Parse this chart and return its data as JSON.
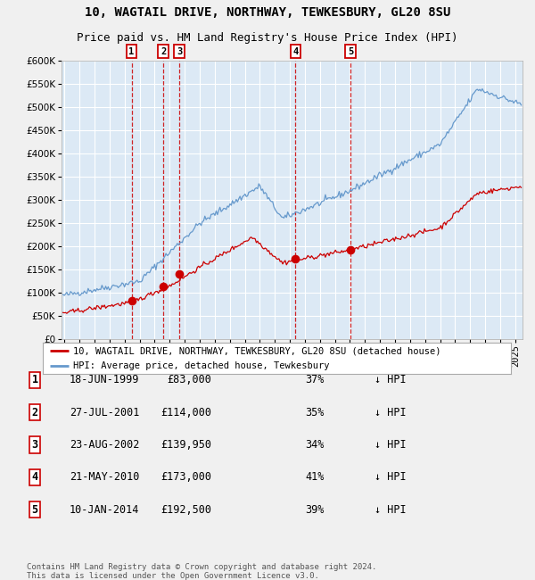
{
  "title": "10, WAGTAIL DRIVE, NORTHWAY, TEWKESBURY, GL20 8SU",
  "subtitle": "Price paid vs. HM Land Registry's House Price Index (HPI)",
  "background_color": "#f0f0f0",
  "plot_bg_color": "#dce9f5",
  "grid_color": "#ffffff",
  "ylim": [
    0,
    600000
  ],
  "yticks": [
    0,
    50000,
    100000,
    150000,
    200000,
    250000,
    300000,
    350000,
    400000,
    450000,
    500000,
    550000,
    600000
  ],
  "xlim_start": 1994.8,
  "xlim_end": 2025.5,
  "sale_dates": [
    1999.46,
    2001.57,
    2002.64,
    2010.38,
    2014.03
  ],
  "sale_prices": [
    83000,
    114000,
    139950,
    173000,
    192500
  ],
  "sale_labels": [
    "1",
    "2",
    "3",
    "4",
    "5"
  ],
  "red_line_color": "#cc0000",
  "blue_line_color": "#6699cc",
  "marker_color": "#cc0000",
  "dashed_line_color": "#cc0000",
  "legend_red_label": "10, WAGTAIL DRIVE, NORTHWAY, TEWKESBURY, GL20 8SU (detached house)",
  "legend_blue_label": "HPI: Average price, detached house, Tewkesbury",
  "table_data": [
    [
      "1",
      "18-JUN-1999",
      "£83,000",
      "37%",
      "↓ HPI"
    ],
    [
      "2",
      "27-JUL-2001",
      "£114,000",
      "35%",
      "↓ HPI"
    ],
    [
      "3",
      "23-AUG-2002",
      "£139,950",
      "34%",
      "↓ HPI"
    ],
    [
      "4",
      "21-MAY-2010",
      "£173,000",
      "41%",
      "↓ HPI"
    ],
    [
      "5",
      "10-JAN-2014",
      "£192,500",
      "39%",
      "↓ HPI"
    ]
  ],
  "footer_line1": "Contains HM Land Registry data © Crown copyright and database right 2024.",
  "footer_line2": "This data is licensed under the Open Government Licence v3.0.",
  "title_fontsize": 10,
  "subtitle_fontsize": 9,
  "tick_fontsize": 7.5,
  "legend_fontsize": 7.5,
  "table_fontsize": 8.5,
  "footer_fontsize": 6.5
}
